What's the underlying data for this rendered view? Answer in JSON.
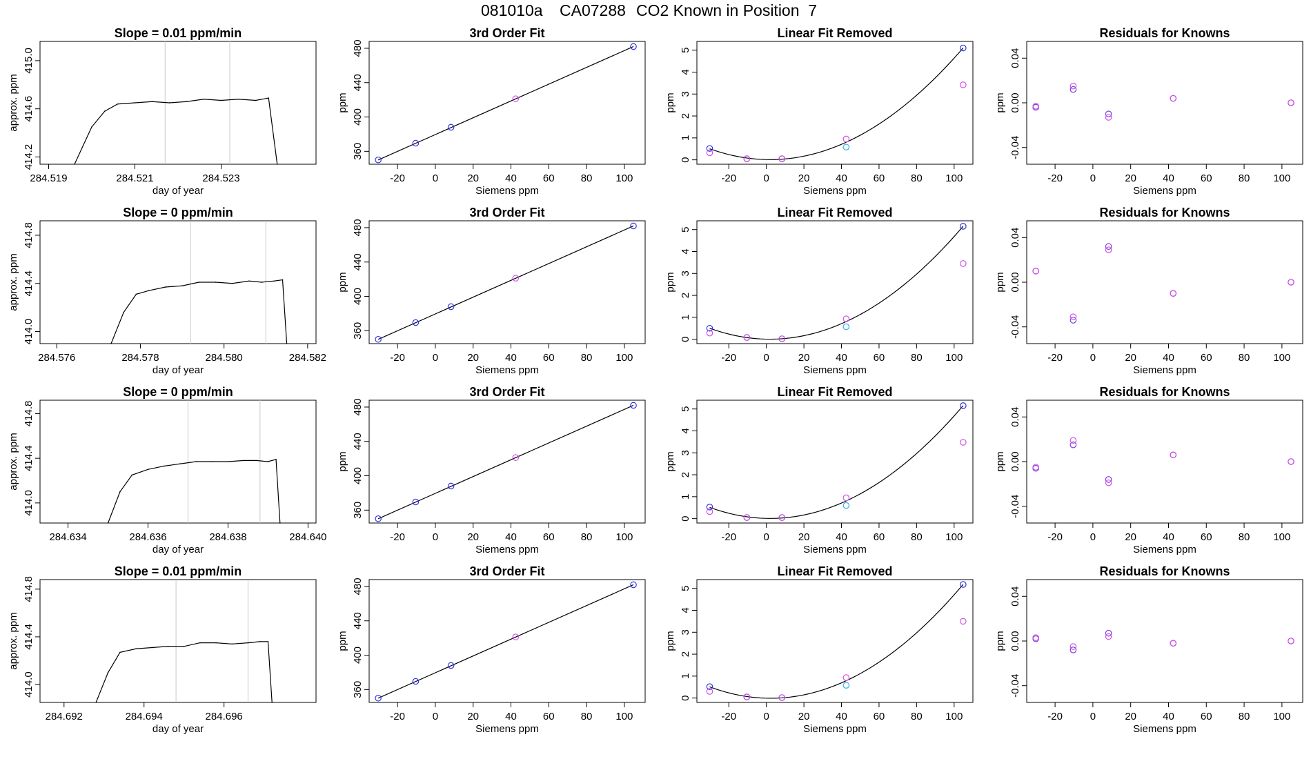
{
  "page": {
    "run_id": "081010a",
    "instrument": "CA07288",
    "description": "CO2 Known in Position  7"
  },
  "colors": {
    "frame": "#000000",
    "trace": "#000000",
    "trace_highlight": "#ff6666",
    "vline": "#c8c8c8",
    "point_blue": "#3030e6",
    "point_magenta": "#d050e6",
    "point_cyan": "#30b0e6",
    "point_purple": "#7a3ce6"
  },
  "chart_data": [
    {
      "type": "line",
      "panel": "raw-trace",
      "title": "Slope =  0.01  ppm/min",
      "xlabel": "day of year",
      "ylabel": "approx. ppm",
      "xlim": [
        284.5188,
        284.5252
      ],
      "ylim": [
        414.14,
        415.16
      ],
      "xticks": [
        "284.519",
        "284.521",
        "284.523"
      ],
      "yticks": [
        "414.2",
        "414.6",
        "415.0"
      ],
      "vlines": [
        284.5217,
        284.5232
      ],
      "x": [
        284.5196,
        284.52,
        284.5203,
        284.5206,
        284.521,
        284.5214,
        284.5218,
        284.5222,
        284.5226,
        284.523,
        284.5234,
        284.5238,
        284.5241,
        284.5243
      ],
      "y": [
        414.12,
        414.45,
        414.58,
        414.64,
        414.65,
        414.66,
        414.65,
        414.66,
        414.68,
        414.67,
        414.68,
        414.67,
        414.69,
        414.1
      ]
    },
    {
      "type": "scatter",
      "panel": "fit",
      "title": "3rd Order Fit",
      "xlabel": "Siemens ppm",
      "ylabel": "ppm",
      "xlim": [
        -35,
        111
      ],
      "ylim": [
        345,
        488
      ],
      "xticks": [
        "-20",
        "0",
        "20",
        "40",
        "60",
        "80",
        "100"
      ],
      "yticks": [
        "360",
        "400",
        "440",
        "480"
      ],
      "curve": "linear",
      "series": [
        {
          "color": "blue",
          "x": [
            -30.2,
            -10.4,
            8.3,
            104.8
          ],
          "y": [
            350.0,
            369.5,
            388.0,
            482.0
          ]
        },
        {
          "color": "magenta",
          "x": [
            42.5
          ],
          "y": [
            421.2
          ]
        }
      ]
    },
    {
      "type": "scatter",
      "panel": "nonlinear",
      "title": "Linear Fit Removed",
      "xlabel": "Siemens ppm",
      "ylabel": "ppm",
      "xlim": [
        -37,
        110
      ],
      "ylim": [
        -0.2,
        5.4
      ],
      "xticks": [
        "-20",
        "0",
        "20",
        "40",
        "60",
        "80",
        "100"
      ],
      "yticks": [
        "0",
        "1",
        "2",
        "3",
        "4",
        "5"
      ],
      "curve": "quadratic",
      "series": [
        {
          "color": "blue",
          "x": [
            -30.2,
            -10.4,
            8.3,
            104.8
          ],
          "y": [
            0.52,
            0.05,
            0.05,
            5.1
          ]
        },
        {
          "color": "magenta",
          "x": [
            -30.2,
            -10.4,
            8.3,
            42.5,
            104.8
          ],
          "y": [
            0.32,
            0.05,
            0.05,
            0.95,
            3.42
          ]
        },
        {
          "color": "cyan",
          "x": [
            42.5
          ],
          "y": [
            0.58
          ]
        }
      ]
    },
    {
      "type": "scatter",
      "panel": "residuals",
      "title": "Residuals for Knowns",
      "xlabel": "Siemens ppm",
      "ylabel": "ppm",
      "xlim": [
        -35,
        111
      ],
      "ylim": [
        -0.055,
        0.055
      ],
      "xticks": [
        "-20",
        "0",
        "20",
        "40",
        "60",
        "80",
        "100"
      ],
      "yticks": [
        "-0.04",
        "0.00",
        "0.04"
      ],
      "series": [
        {
          "color": "purple",
          "x": [
            -30.2,
            -10.4,
            8.3,
            42.5,
            104.8
          ],
          "y": [
            -0.004,
            0.012,
            -0.01,
            0.004,
            0.0
          ]
        },
        {
          "color": "magenta",
          "x": [
            -30.2,
            -10.4,
            8.3,
            42.5,
            104.8
          ],
          "y": [
            -0.003,
            0.015,
            -0.013,
            0.004,
            0.0
          ]
        }
      ]
    },
    {
      "type": "line",
      "panel": "raw-trace",
      "title": "Slope =  0  ppm/min",
      "xlabel": "day of year",
      "ylabel": "approx. ppm",
      "xlim": [
        284.5756,
        284.5822
      ],
      "ylim": [
        413.9,
        414.92
      ],
      "xticks": [
        "284.576",
        "284.578",
        "284.580",
        "284.582"
      ],
      "yticks": [
        "414.0",
        "414.4",
        "414.8"
      ],
      "vlines": [
        284.5792,
        284.581
      ],
      "x": [
        284.5773,
        284.5776,
        284.5779,
        284.5782,
        284.5786,
        284.579,
        284.5794,
        284.5798,
        284.5802,
        284.5806,
        284.5809,
        284.5812,
        284.5814,
        284.5815
      ],
      "y": [
        413.88,
        414.16,
        414.31,
        414.34,
        414.37,
        414.38,
        414.41,
        414.41,
        414.4,
        414.42,
        414.41,
        414.42,
        414.43,
        413.9
      ]
    },
    {
      "type": "scatter",
      "panel": "fit",
      "title": "3rd Order Fit",
      "xlabel": "Siemens ppm",
      "ylabel": "ppm",
      "xlim": [
        -35,
        111
      ],
      "ylim": [
        345,
        488
      ],
      "xticks": [
        "-20",
        "0",
        "20",
        "40",
        "60",
        "80",
        "100"
      ],
      "yticks": [
        "360",
        "400",
        "440",
        "480"
      ],
      "curve": "linear",
      "series": [
        {
          "color": "blue",
          "x": [
            -30.2,
            -10.4,
            8.3,
            104.8
          ],
          "y": [
            350.0,
            369.5,
            388.0,
            482.0
          ]
        },
        {
          "color": "magenta",
          "x": [
            42.5
          ],
          "y": [
            421.2
          ]
        }
      ]
    },
    {
      "type": "scatter",
      "panel": "nonlinear",
      "title": "Linear Fit Removed",
      "xlabel": "Siemens ppm",
      "ylabel": "ppm",
      "xlim": [
        -37,
        110
      ],
      "ylim": [
        -0.2,
        5.4
      ],
      "xticks": [
        "-20",
        "0",
        "20",
        "40",
        "60",
        "80",
        "100"
      ],
      "yticks": [
        "0",
        "1",
        "2",
        "3",
        "4",
        "5"
      ],
      "curve": "quadratic",
      "series": [
        {
          "color": "blue",
          "x": [
            -30.2,
            -10.4,
            8.3,
            104.8
          ],
          "y": [
            0.5,
            0.08,
            0.02,
            5.15
          ]
        },
        {
          "color": "magenta",
          "x": [
            -30.2,
            -10.4,
            8.3,
            42.5,
            104.8
          ],
          "y": [
            0.28,
            0.08,
            0.02,
            0.93,
            3.45
          ]
        },
        {
          "color": "cyan",
          "x": [
            42.5
          ],
          "y": [
            0.57
          ]
        }
      ]
    },
    {
      "type": "scatter",
      "panel": "residuals",
      "title": "Residuals for Knowns",
      "xlabel": "Siemens ppm",
      "ylabel": "ppm",
      "xlim": [
        -35,
        111
      ],
      "ylim": [
        -0.055,
        0.055
      ],
      "xticks": [
        "-20",
        "0",
        "20",
        "40",
        "60",
        "80",
        "100"
      ],
      "yticks": [
        "-0.04",
        "0.00",
        "0.04"
      ],
      "series": [
        {
          "color": "purple",
          "x": [
            -30.2,
            -10.4,
            8.3,
            42.5,
            104.8
          ],
          "y": [
            0.01,
            -0.034,
            0.032,
            -0.01,
            0.0
          ]
        },
        {
          "color": "magenta",
          "x": [
            -30.2,
            -10.4,
            8.3,
            42.5,
            104.8
          ],
          "y": [
            0.01,
            -0.031,
            0.029,
            -0.01,
            0.0
          ]
        }
      ]
    },
    {
      "type": "line",
      "panel": "raw-trace",
      "title": "Slope =  0  ppm/min",
      "xlabel": "day of year",
      "ylabel": "approx. ppm",
      "xlim": [
        284.6333,
        284.6402
      ],
      "ylim": [
        413.82,
        414.92
      ],
      "xticks": [
        "284.634",
        "284.636",
        "284.638",
        "284.640"
      ],
      "yticks": [
        "414.0",
        "414.4",
        "414.8"
      ],
      "vlines": [
        284.637,
        284.6388
      ],
      "x": [
        284.635,
        284.6353,
        284.6356,
        284.636,
        284.6364,
        284.6368,
        284.6372,
        284.6376,
        284.638,
        284.6384,
        284.6387,
        284.639,
        284.6392,
        284.6393
      ],
      "y": [
        413.82,
        414.1,
        414.25,
        414.3,
        414.33,
        414.35,
        414.37,
        414.37,
        414.37,
        414.38,
        414.38,
        414.37,
        414.39,
        413.82
      ]
    },
    {
      "type": "scatter",
      "panel": "fit",
      "title": "3rd Order Fit",
      "xlabel": "Siemens ppm",
      "ylabel": "ppm",
      "xlim": [
        -35,
        111
      ],
      "ylim": [
        345,
        488
      ],
      "xticks": [
        "-20",
        "0",
        "20",
        "40",
        "60",
        "80",
        "100"
      ],
      "yticks": [
        "360",
        "400",
        "440",
        "480"
      ],
      "curve": "linear",
      "series": [
        {
          "color": "blue",
          "x": [
            -30.2,
            -10.4,
            8.3,
            104.8
          ],
          "y": [
            350.0,
            369.5,
            388.0,
            482.0
          ]
        },
        {
          "color": "magenta",
          "x": [
            42.5
          ],
          "y": [
            421.2
          ]
        }
      ]
    },
    {
      "type": "scatter",
      "panel": "nonlinear",
      "title": "Linear Fit Removed",
      "xlabel": "Siemens ppm",
      "ylabel": "ppm",
      "xlim": [
        -37,
        110
      ],
      "ylim": [
        -0.2,
        5.4
      ],
      "xticks": [
        "-20",
        "0",
        "20",
        "40",
        "60",
        "80",
        "100"
      ],
      "yticks": [
        "0",
        "1",
        "2",
        "3",
        "4",
        "5"
      ],
      "curve": "quadratic",
      "series": [
        {
          "color": "blue",
          "x": [
            -30.2,
            -10.4,
            8.3,
            104.8
          ],
          "y": [
            0.53,
            0.05,
            0.05,
            5.15
          ]
        },
        {
          "color": "magenta",
          "x": [
            -30.2,
            -10.4,
            8.3,
            42.5,
            104.8
          ],
          "y": [
            0.32,
            0.05,
            0.05,
            0.95,
            3.48
          ]
        },
        {
          "color": "cyan",
          "x": [
            42.5
          ],
          "y": [
            0.6
          ]
        }
      ]
    },
    {
      "type": "scatter",
      "panel": "residuals",
      "title": "Residuals for Knowns",
      "xlabel": "Siemens ppm",
      "ylabel": "ppm",
      "xlim": [
        -35,
        111
      ],
      "ylim": [
        -0.055,
        0.055
      ],
      "xticks": [
        "-20",
        "0",
        "20",
        "40",
        "60",
        "80",
        "100"
      ],
      "yticks": [
        "-0.04",
        "0.00",
        "0.04"
      ],
      "series": [
        {
          "color": "purple",
          "x": [
            -30.2,
            -10.4,
            8.3,
            42.5,
            104.8
          ],
          "y": [
            -0.006,
            0.015,
            -0.016,
            0.006,
            0.0
          ]
        },
        {
          "color": "magenta",
          "x": [
            -30.2,
            -10.4,
            8.3,
            42.5,
            104.8
          ],
          "y": [
            -0.005,
            0.019,
            -0.019,
            0.006,
            0.0
          ]
        }
      ]
    },
    {
      "type": "line",
      "panel": "raw-trace",
      "title": "Slope =  0.01  ppm/min",
      "xlabel": "day of year",
      "ylabel": "approx. ppm",
      "xlim": [
        284.6914,
        284.6983
      ],
      "ylim": [
        413.85,
        414.88
      ],
      "xticks": [
        "284.692",
        "284.694",
        "284.696"
      ],
      "yticks": [
        "414.0",
        "414.4",
        "414.8"
      ],
      "vlines": [
        284.6948,
        284.6966
      ],
      "x": [
        284.6928,
        284.6931,
        284.6934,
        284.6938,
        284.6942,
        284.6946,
        284.695,
        284.6954,
        284.6958,
        284.6962,
        284.6966,
        284.6969,
        284.6971,
        284.6972
      ],
      "y": [
        413.85,
        414.1,
        414.27,
        414.3,
        414.31,
        414.32,
        414.32,
        414.35,
        414.35,
        414.34,
        414.35,
        414.36,
        414.36,
        413.85
      ]
    },
    {
      "type": "scatter",
      "panel": "fit",
      "title": "3rd Order Fit",
      "xlabel": "Siemens ppm",
      "ylabel": "ppm",
      "xlim": [
        -35,
        111
      ],
      "ylim": [
        345,
        488
      ],
      "xticks": [
        "-20",
        "0",
        "20",
        "40",
        "60",
        "80",
        "100"
      ],
      "yticks": [
        "360",
        "400",
        "440",
        "480"
      ],
      "curve": "linear",
      "series": [
        {
          "color": "blue",
          "x": [
            -30.2,
            -10.4,
            8.3,
            104.8
          ],
          "y": [
            350.0,
            369.5,
            388.0,
            482.0
          ]
        },
        {
          "color": "magenta",
          "x": [
            42.5
          ],
          "y": [
            421.2
          ]
        }
      ]
    },
    {
      "type": "scatter",
      "panel": "nonlinear",
      "title": "Linear Fit Removed",
      "xlabel": "Siemens ppm",
      "ylabel": "ppm",
      "xlim": [
        -37,
        110
      ],
      "ylim": [
        -0.2,
        5.4
      ],
      "xticks": [
        "-20",
        "0",
        "20",
        "40",
        "60",
        "80",
        "100"
      ],
      "yticks": [
        "0",
        "1",
        "2",
        "3",
        "4",
        "5"
      ],
      "curve": "quadratic",
      "series": [
        {
          "color": "blue",
          "x": [
            -30.2,
            -10.4,
            8.3,
            104.8
          ],
          "y": [
            0.52,
            0.05,
            0.02,
            5.18
          ]
        },
        {
          "color": "magenta",
          "x": [
            -30.2,
            -10.4,
            8.3,
            42.5,
            104.8
          ],
          "y": [
            0.3,
            0.05,
            0.02,
            0.93,
            3.5
          ]
        },
        {
          "color": "cyan",
          "x": [
            42.5
          ],
          "y": [
            0.58
          ]
        }
      ]
    },
    {
      "type": "scatter",
      "panel": "residuals",
      "title": "Residuals for Knowns",
      "xlabel": "Siemens ppm",
      "ylabel": "ppm",
      "xlim": [
        -35,
        111
      ],
      "ylim": [
        -0.055,
        0.055
      ],
      "xticks": [
        "-20",
        "0",
        "20",
        "40",
        "60",
        "80",
        "100"
      ],
      "yticks": [
        "-0.04",
        "0.00",
        "0.04"
      ],
      "series": [
        {
          "color": "purple",
          "x": [
            -30.2,
            -10.4,
            8.3,
            42.5,
            104.8
          ],
          "y": [
            0.002,
            -0.008,
            0.007,
            -0.002,
            0.0
          ]
        },
        {
          "color": "magenta",
          "x": [
            -30.2,
            -10.4,
            8.3,
            42.5,
            104.8
          ],
          "y": [
            0.003,
            -0.005,
            0.004,
            -0.002,
            0.0
          ]
        }
      ]
    }
  ]
}
